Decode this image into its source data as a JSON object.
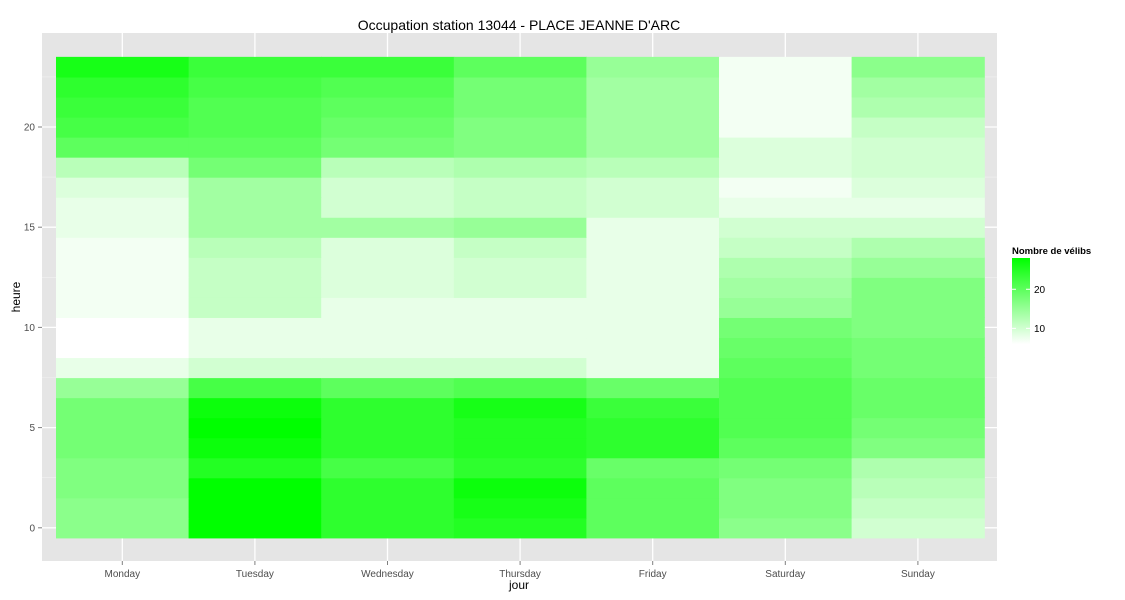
{
  "chart_data": {
    "type": "heatmap",
    "title": "Occupation station 13044 - PLACE JEANNE D'ARC",
    "xlabel": "jour",
    "ylabel": "heure",
    "x_categories": [
      "Monday",
      "Tuesday",
      "Wednesday",
      "Thursday",
      "Friday",
      "Saturday",
      "Sunday"
    ],
    "y_hours": [
      0,
      1,
      2,
      3,
      4,
      5,
      6,
      7,
      8,
      9,
      10,
      11,
      12,
      13,
      14,
      15,
      16,
      17,
      18,
      19,
      20,
      21,
      22,
      23
    ],
    "y_ticks": [
      0,
      5,
      10,
      15,
      20
    ],
    "legend": {
      "title": "Nombre de vélibs",
      "ticks": [
        10,
        20
      ],
      "range": [
        6,
        28
      ],
      "color_low": "#ffffff",
      "color_high": "#00ff00"
    },
    "grid": true,
    "values": [
      [
        16,
        28,
        24,
        25,
        20,
        16,
        10
      ],
      [
        16,
        28,
        24,
        26,
        20,
        17,
        11
      ],
      [
        17,
        28,
        24,
        27,
        20,
        17,
        12
      ],
      [
        17,
        25,
        22,
        24,
        19,
        18,
        13
      ],
      [
        18,
        27,
        24,
        25,
        24,
        20,
        17
      ],
      [
        18,
        28,
        24,
        25,
        24,
        21,
        18
      ],
      [
        18,
        27,
        24,
        26,
        23,
        21,
        19
      ],
      [
        15,
        22,
        20,
        21,
        19,
        21,
        19
      ],
      [
        8,
        10,
        10,
        10,
        8,
        20,
        18
      ],
      [
        6,
        8,
        8,
        8,
        8,
        19,
        18
      ],
      [
        6,
        8,
        8,
        8,
        8,
        18,
        17
      ],
      [
        7,
        11,
        8,
        8,
        8,
        15,
        17
      ],
      [
        7,
        11,
        9,
        10,
        8,
        14,
        17
      ],
      [
        7,
        11,
        9,
        10,
        8,
        13,
        15
      ],
      [
        7,
        12,
        9,
        11,
        8,
        11,
        13
      ],
      [
        8,
        14,
        14,
        15,
        8,
        10,
        10
      ],
      [
        8,
        14,
        10,
        11,
        10,
        8,
        8
      ],
      [
        9,
        14,
        10,
        11,
        10,
        7,
        9
      ],
      [
        12,
        18,
        12,
        13,
        12,
        9,
        10
      ],
      [
        20,
        20,
        18,
        17,
        14,
        9,
        10
      ],
      [
        22,
        21,
        19,
        17,
        14,
        7,
        11
      ],
      [
        23,
        21,
        20,
        18,
        14,
        7,
        13
      ],
      [
        24,
        22,
        21,
        18,
        14,
        7,
        14
      ],
      [
        26,
        23,
        23,
        20,
        15,
        7,
        16
      ]
    ]
  }
}
